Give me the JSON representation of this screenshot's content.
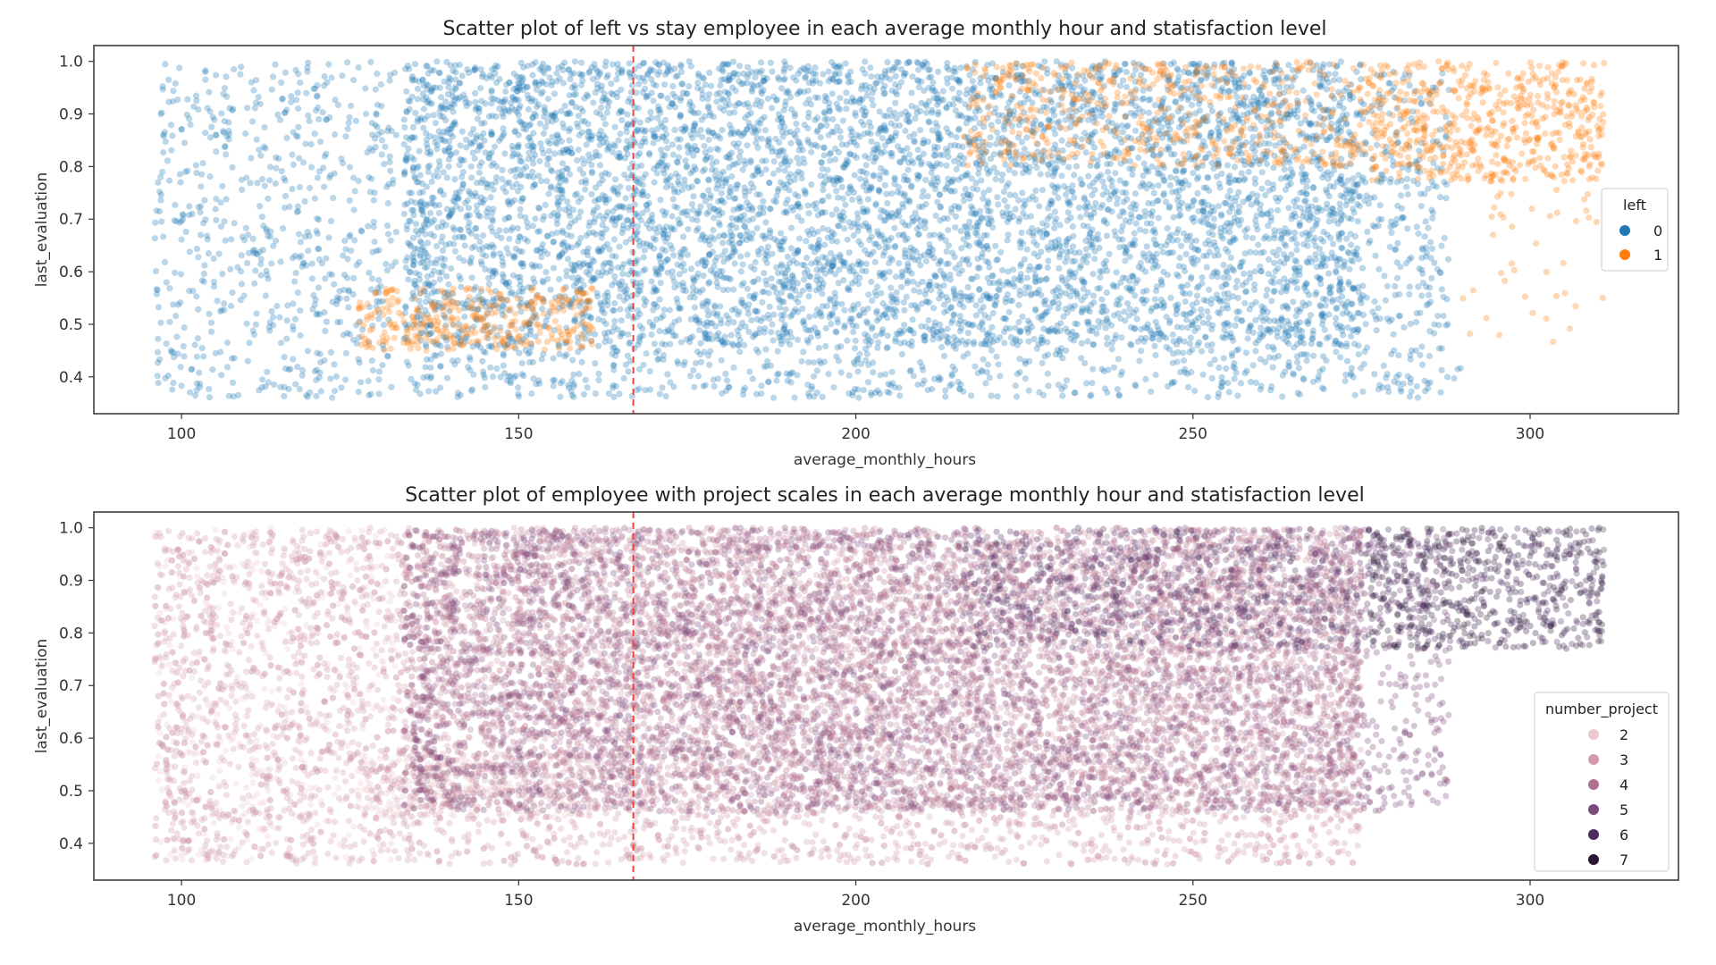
{
  "chart_data": [
    {
      "type": "scatter",
      "title": "Scatter plot of left vs stay employee in each average monthly hour and statisfaction level",
      "xlabel": "average_monthly_hours",
      "ylabel": "last_evaluation",
      "xlim": [
        87,
        322
      ],
      "ylim": [
        0.33,
        1.03
      ],
      "xticks": [
        100,
        150,
        200,
        250,
        300
      ],
      "yticks": [
        0.4,
        0.5,
        0.6,
        0.7,
        0.8,
        0.9,
        1.0
      ],
      "grid": false,
      "legend": {
        "title": "left",
        "placement": "center-right",
        "entries": [
          "0",
          "1"
        ]
      },
      "reference_line": {
        "x": 167,
        "color": "#e8453c",
        "style": "dashed"
      },
      "series": [
        {
          "name": "0",
          "color": "#1f77b4",
          "regions": [
            {
              "x": [
                96,
                132
              ],
              "y": [
                0.36,
                1.0
              ],
              "density": 0.35
            },
            {
              "x": [
                133,
                275
              ],
              "y": [
                0.46,
                1.0
              ],
              "density": 1.0
            },
            {
              "x": [
                133,
                287
              ],
              "y": [
                0.36,
                0.46
              ],
              "density": 0.45
            },
            {
              "x": [
                275,
                288
              ],
              "y": [
                0.48,
                0.98
              ],
              "density": 0.45
            },
            {
              "x": [
                276,
                290
              ],
              "y": [
                0.36,
                0.42
              ],
              "density": 0.3
            }
          ]
        },
        {
          "name": "1",
          "color": "#ff7f0e",
          "regions": [
            {
              "x": [
                126,
                161
              ],
              "y": [
                0.45,
                0.57
              ],
              "density": 1.0
            },
            {
              "x": [
                216,
                276
              ],
              "y": [
                0.8,
                1.0
              ],
              "density": 0.55
            },
            {
              "x": [
                276,
                311
              ],
              "y": [
                0.77,
                1.0
              ],
              "density": 0.9
            },
            {
              "x": [
                290,
                311
              ],
              "y": [
                0.46,
                0.76
              ],
              "density": 0.08
            }
          ]
        }
      ]
    },
    {
      "type": "scatter",
      "title": "Scatter plot of employee with project scales in each average monthly hour and statisfaction level",
      "xlabel": "average_monthly_hours",
      "ylabel": "last_evaluation",
      "xlim": [
        87,
        322
      ],
      "ylim": [
        0.33,
        1.03
      ],
      "xticks": [
        100,
        150,
        200,
        250,
        300
      ],
      "yticks": [
        0.4,
        0.5,
        0.6,
        0.7,
        0.8,
        0.9,
        1.0
      ],
      "grid": false,
      "legend": {
        "title": "number_project",
        "placement": "lower-right",
        "entries": [
          "2",
          "3",
          "4",
          "5",
          "6",
          "7"
        ]
      },
      "reference_line": {
        "x": 167,
        "color": "#e8453c",
        "style": "dashed"
      },
      "series": [
        {
          "name": "2",
          "color": "#ecc9cc",
          "regions": [
            {
              "x": [
                126,
                161
              ],
              "y": [
                0.45,
                0.57
              ],
              "density": 1.0
            },
            {
              "x": [
                96,
                132
              ],
              "y": [
                0.36,
                1.0
              ],
              "density": 0.2
            }
          ]
        },
        {
          "name": "3",
          "color": "#d19aad",
          "regions": [
            {
              "x": [
                96,
                275
              ],
              "y": [
                0.36,
                1.0
              ],
              "density": 0.7
            }
          ]
        },
        {
          "name": "4",
          "color": "#b0708f",
          "regions": [
            {
              "x": [
                133,
                275
              ],
              "y": [
                0.46,
                1.0
              ],
              "density": 0.8
            }
          ]
        },
        {
          "name": "5",
          "color": "#7d4a79",
          "regions": [
            {
              "x": [
                133,
                288
              ],
              "y": [
                0.46,
                1.0
              ],
              "density": 0.45
            }
          ]
        },
        {
          "name": "6",
          "color": "#4d2c5f",
          "regions": [
            {
              "x": [
                216,
                311
              ],
              "y": [
                0.77,
                1.0
              ],
              "density": 0.5
            }
          ]
        },
        {
          "name": "7",
          "color": "#2a1638",
          "regions": [
            {
              "x": [
                276,
                311
              ],
              "y": [
                0.77,
                1.0
              ],
              "density": 0.6
            }
          ]
        }
      ]
    }
  ]
}
